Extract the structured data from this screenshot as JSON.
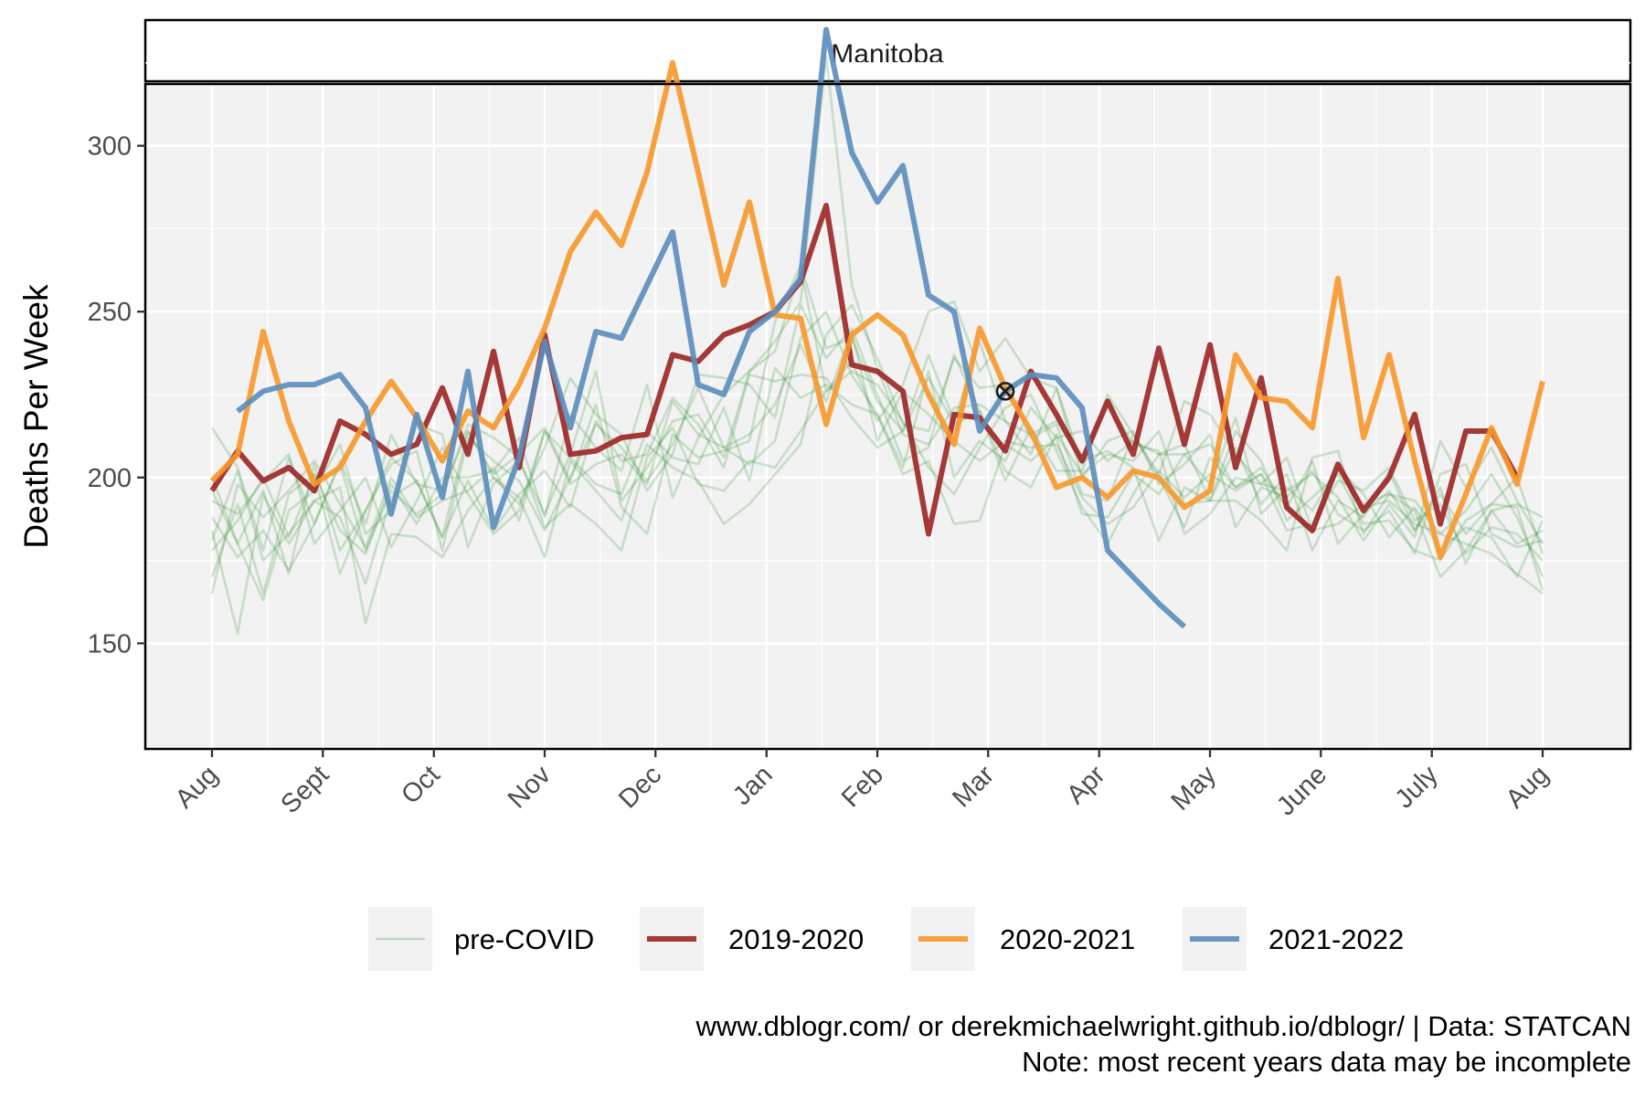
{
  "chart_data": {
    "type": "line",
    "title": "",
    "facet_label": "Manitoba",
    "xlabel": "",
    "ylabel": "Deaths Per Week",
    "x_tick_labels": [
      "Aug",
      "Sept",
      "Oct",
      "Nov",
      "Dec",
      "Jan",
      "Feb",
      "Mar",
      "Apr",
      "May",
      "June",
      "July",
      "Aug"
    ],
    "x_tick_positions_week": [
      1,
      5.33,
      9.67,
      14,
      18.33,
      22.67,
      27,
      31.33,
      35.67,
      40,
      44.33,
      48.67,
      53
    ],
    "x_range_week": [
      -0.5,
      54.5
    ],
    "y_ticks": [
      150,
      200,
      250,
      300
    ],
    "ylim": [
      140,
      340
    ],
    "grid": true,
    "legend_position": "bottom",
    "series": [
      {
        "name": "pre-COVID",
        "color": "#2e8b2e",
        "group": "pre-COVID",
        "x_start": 1,
        "values": [
          215,
          203,
          178,
          206,
          186,
          204,
          178,
          196,
          189,
          195,
          216,
          212,
          206,
          185,
          192,
          186,
          178,
          206,
          215,
          198,
          196,
          205,
          203,
          214,
          226,
          232,
          228,
          217,
          203,
          195,
          209,
          221,
          225,
          208,
          191,
          180,
          195,
          207,
          207,
          210,
          197,
          201,
          184,
          186,
          199,
          196,
          203,
          187,
          192,
          177,
          185,
          183,
          175
        ]
      },
      {
        "name": "pre-COVID",
        "color": "#2e8b2e",
        "group": "pre-COVID",
        "x_start": 1,
        "values": [
          200,
          180,
          196,
          171,
          204,
          178,
          190,
          206,
          199,
          182,
          214,
          201,
          207,
          215,
          199,
          222,
          191,
          183,
          213,
          206,
          208,
          211,
          247,
          264,
          239,
          242,
          223,
          214,
          237,
          217,
          241,
          217,
          207,
          227,
          200,
          211,
          214,
          198,
          204,
          213,
          185,
          197,
          194,
          202,
          189,
          184,
          190,
          177,
          201,
          204,
          183,
          179,
          181
        ]
      },
      {
        "name": "pre-COVID",
        "color": "#2e8b2e",
        "group": "pre-COVID",
        "x_start": 1,
        "values": [
          178,
          187,
          200,
          182,
          201,
          171,
          190,
          204,
          208,
          178,
          212,
          205,
          199,
          184,
          200,
          216,
          209,
          199,
          210,
          227,
          209,
          204,
          211,
          242,
          250,
          231,
          219,
          203,
          232,
          200,
          211,
          205,
          221,
          212,
          214,
          205,
          211,
          207,
          210,
          193,
          209,
          192,
          201,
          178,
          193,
          188,
          202,
          184,
          197,
          174,
          190,
          192,
          188
        ]
      },
      {
        "name": "pre-COVID",
        "color": "#2e8b2e",
        "group": "pre-COVID",
        "x_start": 1,
        "values": [
          165,
          198,
          188,
          196,
          205,
          192,
          179,
          200,
          188,
          193,
          196,
          203,
          187,
          214,
          206,
          198,
          195,
          214,
          206,
          204,
          221,
          199,
          233,
          224,
          228,
          222,
          219,
          201,
          205,
          186,
          187,
          210,
          205,
          212,
          189,
          188,
          201,
          195,
          207,
          198,
          218,
          189,
          197,
          190,
          203,
          195,
          182,
          191,
          178,
          185,
          182,
          170,
          187
        ]
      },
      {
        "name": "pre-COVID",
        "color": "#2e8b2e",
        "group": "pre-COVID",
        "x_start": 1,
        "values": [
          181,
          202,
          175,
          183,
          193,
          188,
          168,
          194,
          199,
          182,
          199,
          184,
          195,
          202,
          191,
          217,
          205,
          207,
          224,
          216,
          203,
          231,
          229,
          231,
          230,
          218,
          209,
          214,
          230,
          216,
          220,
          202,
          197,
          213,
          201,
          207,
          205,
          214,
          192,
          193,
          193,
          187,
          178,
          206,
          208,
          183,
          195,
          193,
          183,
          190,
          201,
          188,
          170
        ]
      },
      {
        "name": "pre-COVID",
        "color": "#2e8b2e",
        "group": "pre-COVID",
        "x_start": 1,
        "values": [
          193,
          189,
          199,
          207,
          180,
          190,
          200,
          179,
          193,
          209,
          195,
          183,
          190,
          214,
          198,
          204,
          207,
          198,
          223,
          213,
          209,
          213,
          222,
          240,
          223,
          244,
          211,
          226,
          219,
          211,
          205,
          211,
          209,
          210,
          194,
          186,
          191,
          202,
          194,
          201,
          196,
          201,
          191,
          184,
          186,
          192,
          195,
          190,
          170,
          178,
          190,
          180,
          184
        ]
      },
      {
        "name": "pre-COVID",
        "color": "#2e8b2e",
        "group": "pre-COVID",
        "x_start": 1,
        "values": [
          188,
          176,
          184,
          172,
          186,
          205,
          186,
          213,
          198,
          196,
          214,
          200,
          192,
          209,
          230,
          219,
          213,
          196,
          207,
          231,
          230,
          228,
          218,
          252,
          236,
          245,
          225,
          205,
          209,
          237,
          220,
          199,
          215,
          202,
          202,
          223,
          210,
          208,
          183,
          189,
          200,
          198,
          206,
          184,
          202,
          191,
          193,
          186,
          183,
          180,
          177,
          171,
          165
        ]
      },
      {
        "name": "pre-COVID",
        "color": "#2e8b2e",
        "group": "pre-COVID",
        "x_start": 1,
        "values": [
          170,
          192,
          165,
          195,
          201,
          184,
          177,
          198,
          186,
          200,
          200,
          202,
          212,
          188,
          219,
          209,
          202,
          228,
          194,
          212,
          225,
          232,
          241,
          253,
          327,
          258,
          233,
          213,
          210,
          221,
          222,
          217,
          213,
          217,
          205,
          208,
          203,
          181,
          197,
          193,
          214,
          205,
          187,
          194,
          201,
          186,
          187,
          178,
          175,
          187,
          192,
          191,
          166
        ]
      },
      {
        "name": "pre-COVID",
        "color": "#2e8b2e",
        "group": "pre-COVID",
        "x_start": 1,
        "values": [
          196,
          180,
          163,
          190,
          196,
          210,
          183,
          190,
          216,
          213,
          179,
          198,
          205,
          189,
          207,
          232,
          193,
          203,
          217,
          219,
          206,
          232,
          238,
          263,
          226,
          235,
          217,
          228,
          250,
          253,
          232,
          242,
          230,
          227,
          204,
          225,
          213,
          200,
          185,
          206,
          197,
          203,
          191,
          205,
          180,
          189,
          196,
          184,
          195,
          183,
          192,
          200,
          177
        ]
      },
      {
        "name": "pre-COVID",
        "color": "#2e8b2e",
        "group": "pre-COVID",
        "x_start": 1,
        "values": [
          184,
          153,
          195,
          180,
          193,
          197,
          156,
          183,
          182,
          176,
          190,
          200,
          194,
          176,
          205,
          196,
          187,
          210,
          203,
          199,
          186,
          192,
          201,
          210,
          243,
          252,
          236,
          216,
          214,
          236,
          227,
          228,
          212,
          216,
          195,
          193,
          213,
          201,
          223,
          219,
          207,
          198,
          196,
          201,
          194,
          181,
          192,
          182,
          211,
          197,
          209,
          193,
          180
        ]
      },
      {
        "name": "2019-2020",
        "color": "#9b2523",
        "group": "covid",
        "x_start": 1,
        "values": [
          196,
          208,
          199,
          203,
          196,
          217,
          213,
          207,
          210,
          227,
          207,
          238,
          203,
          243,
          207,
          208,
          212,
          213,
          237,
          235,
          243,
          246,
          250,
          259,
          282,
          234,
          232,
          226,
          183,
          219,
          218,
          208,
          232,
          219,
          205,
          223,
          207,
          239,
          210,
          240,
          203,
          230,
          191,
          184,
          204,
          190,
          200,
          219,
          186,
          214,
          214,
          200
        ]
      },
      {
        "name": "2020-2021",
        "color": "#f7982a",
        "group": "covid",
        "x_start": 1,
        "values": [
          199,
          207,
          244,
          217,
          198,
          203,
          217,
          229,
          218,
          205,
          220,
          215,
          228,
          245,
          268,
          280,
          270,
          292,
          325,
          292,
          258,
          283,
          249,
          248,
          216,
          243,
          249,
          243,
          225,
          210,
          245,
          227,
          214,
          197,
          200,
          194,
          202,
          200,
          191,
          196,
          237,
          224,
          223,
          215,
          260,
          212,
          237,
          205,
          176,
          195,
          215,
          198,
          229
        ]
      },
      {
        "name": "2021-2022",
        "color": "#5b8dbd",
        "group": "covid",
        "x_start": 2,
        "values": [
          220,
          226,
          228,
          228,
          231,
          221,
          189,
          219,
          194,
          232,
          185,
          206,
          241,
          215,
          244,
          242,
          258,
          274,
          228,
          225,
          244,
          250,
          260,
          335,
          298,
          283,
          294,
          255,
          250,
          214,
          226,
          231,
          230,
          221,
          178,
          170,
          162,
          155
        ]
      }
    ]
  },
  "legend": {
    "items": [
      {
        "label": "pre-COVID",
        "color": "#2e8b2e"
      },
      {
        "label": "2019-2020",
        "color": "#9b2523"
      },
      {
        "label": "2020-2021",
        "color": "#f7982a"
      },
      {
        "label": "2021-2022",
        "color": "#5b8dbd"
      }
    ]
  },
  "caption": {
    "line1": "www.dblogr.com/ or derekmichaelwright.github.io/dblogr/ | Data: STATCAN",
    "line2": "Note: most recent years data may be incomplete"
  },
  "colors": {
    "panel_bg": "#f2f2f2",
    "grid": "#ffffff",
    "legend_key_bg": "#f2f2f2"
  }
}
